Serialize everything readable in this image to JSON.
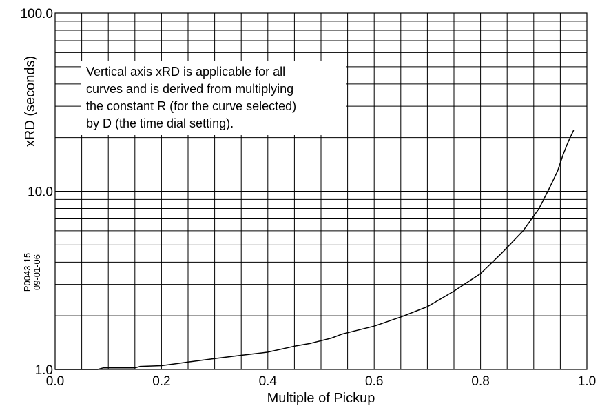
{
  "chart_data": {
    "type": "line",
    "x_axis": {
      "label": "Multiple of Pickup",
      "range": [
        0.0,
        1.0
      ],
      "ticks": [
        0.0,
        0.2,
        0.4,
        0.6,
        0.8,
        1.0
      ],
      "tick_labels": [
        "0.0",
        "0.2",
        "0.4",
        "0.6",
        "0.8",
        "1.0"
      ],
      "minor_step": 0.05
    },
    "y_axis": {
      "label": "xRD (seconds)",
      "scale": "log",
      "range": [
        1.0,
        100.0
      ],
      "tick_labels": [
        {
          "value": 1.0,
          "label": "1.0"
        },
        {
          "value": 10.0,
          "label": "10.0"
        },
        {
          "value": 100.0,
          "label": "100.0"
        }
      ],
      "gridlines": [
        2,
        3,
        4,
        5,
        6,
        7,
        8,
        9,
        20,
        30,
        40,
        50,
        60,
        70,
        80,
        90
      ]
    },
    "grid": true,
    "annotation": {
      "lines": [
        "Vertical axis xRD is applicable for all",
        "curves and is derived from multiplying",
        "the constant R (for the curve selected)",
        "by D (the time dial setting)."
      ],
      "placement": "upper-left"
    },
    "side_note": [
      "P0043-15",
      "09-01-06"
    ],
    "series": [
      {
        "x": [
          0.0,
          0.05,
          0.08,
          0.09,
          0.15,
          0.16,
          0.2,
          0.25,
          0.3,
          0.35,
          0.4,
          0.45,
          0.48,
          0.52,
          0.54,
          0.6,
          0.65,
          0.7,
          0.75,
          0.8,
          0.84,
          0.88,
          0.91,
          0.93,
          0.945,
          0.955,
          0.965,
          0.975
        ],
        "y": [
          1.0,
          1.0,
          1.0,
          1.02,
          1.02,
          1.04,
          1.05,
          1.1,
          1.15,
          1.2,
          1.25,
          1.35,
          1.4,
          1.5,
          1.58,
          1.75,
          1.97,
          2.25,
          2.75,
          3.45,
          4.5,
          6.0,
          8.0,
          10.5,
          13.0,
          16.0,
          19.0,
          22.0
        ]
      }
    ]
  }
}
